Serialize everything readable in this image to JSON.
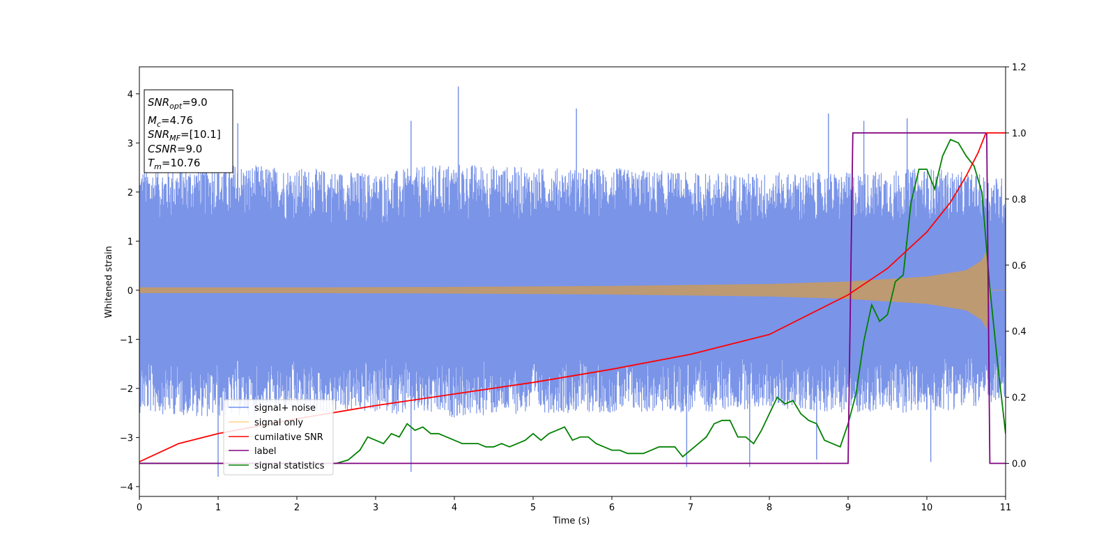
{
  "chart_data": {
    "type": "line",
    "xlabel": "Time (s)",
    "ylabel": "Whitened strain",
    "xlim": [
      0,
      11
    ],
    "ylim_left": [
      -4.2,
      4.55
    ],
    "ylim_right": [
      -0.1,
      1.2
    ],
    "x_ticks": [
      "0",
      "1",
      "2",
      "3",
      "4",
      "5",
      "6",
      "7",
      "8",
      "9",
      "10",
      "11"
    ],
    "y_left_ticks": [
      "4",
      "3",
      "2",
      "1",
      "0",
      "−1",
      "−2",
      "−3",
      "−4"
    ],
    "y_right_ticks": [
      "1.2",
      "1.0",
      "0.8",
      "0.6",
      "0.4",
      "0.2",
      "0.0"
    ],
    "info_box": {
      "snr_opt_label": "SNR",
      "snr_opt_sub": "opt",
      "snr_opt_value": "=9.0",
      "mc_label": "M",
      "mc_sub": "c",
      "mc_value": "=4.76",
      "snr_mf_label": "SNR",
      "snr_mf_sub": "MF",
      "snr_mf_value": "=[10.1]",
      "csnr_label": "CSNR",
      "csnr_value": "=9.0",
      "tm_label": "T",
      "tm_sub": "m",
      "tm_value": "=10.76"
    },
    "legend": {
      "placement": "lower-left",
      "entries": [
        "signal+ noise",
        "signal only",
        "cumilative SNR",
        "label",
        "signal statistics"
      ]
    },
    "colors": {
      "signal_noise": "#7a94e8",
      "signal_noise_legend": "#6f8ff0",
      "signal_only": "#c19a6b",
      "signal_only_legend": "#ffd28c",
      "cumulative_snr": "#ff0000",
      "label": "#800080",
      "signal_statistics": "#008000"
    },
    "series": [
      {
        "name": "signal+ noise",
        "axis": "left",
        "envelope": {
          "x": [
            0,
            1,
            2,
            3,
            4,
            5,
            6,
            7,
            8,
            9,
            10,
            11
          ],
          "upper": [
            2.5,
            2.6,
            2.5,
            2.4,
            2.6,
            2.5,
            2.5,
            2.4,
            2.4,
            2.4,
            2.5,
            2.3
          ],
          "lower": [
            -2.5,
            -2.6,
            -2.5,
            -2.5,
            -2.6,
            -2.5,
            -2.5,
            -2.5,
            -2.4,
            -2.5,
            -2.5,
            -2.3
          ]
        },
        "spikes": [
          {
            "x": 4.05,
            "y": 4.15
          },
          {
            "x": 3.45,
            "y": 3.45
          },
          {
            "x": 5.55,
            "y": 3.7
          },
          {
            "x": 8.75,
            "y": 3.6
          },
          {
            "x": 9.2,
            "y": 3.45
          },
          {
            "x": 9.75,
            "y": 3.5
          },
          {
            "x": 1.25,
            "y": 3.4
          },
          {
            "x": 1.0,
            "y": -3.8
          },
          {
            "x": 3.45,
            "y": -3.7
          },
          {
            "x": 7.75,
            "y": -3.6
          },
          {
            "x": 10.05,
            "y": -3.5
          },
          {
            "x": 6.95,
            "y": -3.6
          },
          {
            "x": 8.6,
            "y": -3.45
          }
        ]
      },
      {
        "name": "signal only",
        "axis": "left",
        "envelope": {
          "x": [
            0,
            2,
            4,
            6,
            8,
            9,
            10,
            10.5,
            10.7,
            10.76,
            10.8,
            11
          ],
          "amp": [
            0.05,
            0.05,
            0.06,
            0.08,
            0.12,
            0.17,
            0.27,
            0.4,
            0.6,
            0.8,
            0,
            0
          ]
        }
      },
      {
        "name": "cumilative SNR",
        "axis": "right",
        "x": [
          0,
          0.5,
          1,
          2,
          3,
          4,
          5,
          6,
          7,
          8,
          9,
          9.5,
          10,
          10.3,
          10.5,
          10.65,
          10.75,
          11
        ],
        "y": [
          0.005,
          0.06,
          0.09,
          0.135,
          0.175,
          0.21,
          0.245,
          0.285,
          0.33,
          0.39,
          0.51,
          0.59,
          0.7,
          0.79,
          0.87,
          0.94,
          1.0,
          1.0
        ]
      },
      {
        "name": "label",
        "axis": "right",
        "x": [
          0,
          9.0,
          9.06,
          10.76,
          10.8,
          11
        ],
        "y": [
          0.0,
          0.0,
          1.0,
          1.0,
          0.0,
          0.0
        ]
      },
      {
        "name": "signal statistics",
        "axis": "right",
        "x": [
          0,
          0.5,
          1,
          1.5,
          2,
          2.5,
          2.65,
          2.8,
          2.9,
          3.0,
          3.1,
          3.2,
          3.3,
          3.4,
          3.5,
          3.6,
          3.7,
          3.8,
          3.9,
          4.0,
          4.1,
          4.2,
          4.3,
          4.4,
          4.5,
          4.6,
          4.7,
          4.8,
          4.9,
          5.0,
          5.1,
          5.2,
          5.3,
          5.4,
          5.5,
          5.6,
          5.7,
          5.8,
          5.9,
          6.0,
          6.1,
          6.2,
          6.3,
          6.4,
          6.5,
          6.6,
          6.7,
          6.8,
          6.9,
          7.0,
          7.1,
          7.2,
          7.3,
          7.4,
          7.5,
          7.6,
          7.7,
          7.8,
          7.9,
          8.0,
          8.1,
          8.2,
          8.3,
          8.4,
          8.5,
          8.6,
          8.7,
          8.8,
          8.9,
          9.0,
          9.1,
          9.2,
          9.3,
          9.4,
          9.5,
          9.6,
          9.7,
          9.8,
          9.9,
          10.0,
          10.1,
          10.2,
          10.3,
          10.4,
          10.5,
          10.6,
          10.7,
          10.8,
          10.9,
          11.0
        ],
        "y": [
          0.0,
          0.0,
          0.0,
          0.0,
          0.0,
          0.0,
          0.01,
          0.04,
          0.08,
          0.07,
          0.06,
          0.09,
          0.08,
          0.12,
          0.1,
          0.11,
          0.09,
          0.09,
          0.08,
          0.07,
          0.06,
          0.06,
          0.06,
          0.05,
          0.05,
          0.06,
          0.05,
          0.06,
          0.07,
          0.09,
          0.07,
          0.09,
          0.1,
          0.11,
          0.07,
          0.08,
          0.08,
          0.06,
          0.05,
          0.04,
          0.04,
          0.03,
          0.03,
          0.03,
          0.04,
          0.05,
          0.05,
          0.05,
          0.02,
          0.04,
          0.06,
          0.08,
          0.12,
          0.13,
          0.13,
          0.08,
          0.08,
          0.06,
          0.1,
          0.15,
          0.2,
          0.18,
          0.19,
          0.15,
          0.13,
          0.12,
          0.07,
          0.06,
          0.05,
          0.12,
          0.21,
          0.37,
          0.48,
          0.43,
          0.45,
          0.55,
          0.57,
          0.79,
          0.89,
          0.89,
          0.83,
          0.93,
          0.98,
          0.97,
          0.93,
          0.9,
          0.82,
          0.53,
          0.3,
          0.09
        ]
      }
    ]
  }
}
